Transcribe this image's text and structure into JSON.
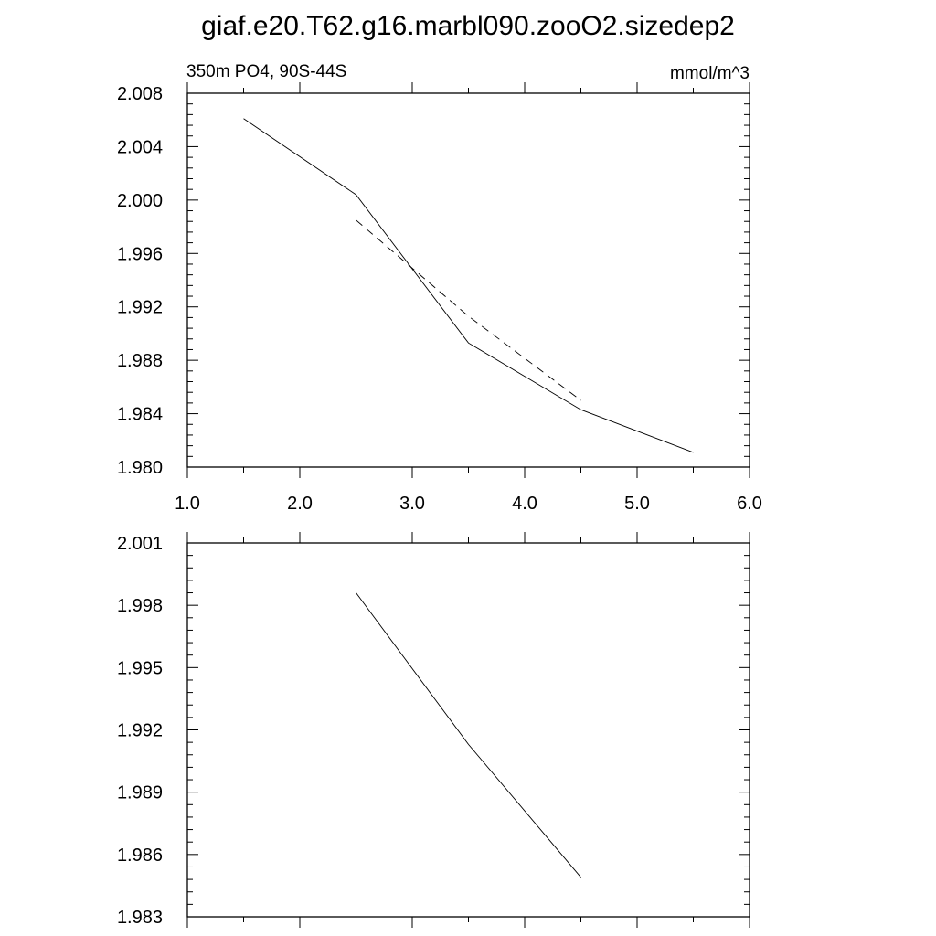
{
  "figure": {
    "title": "giaf.e20.T62.g16.marbl090.zooO2.sizedep2",
    "left_subtitle": "350m PO4, 90S-44S",
    "right_subtitle": "mmol/m^3"
  },
  "chart_data": [
    {
      "type": "line",
      "xlim": [
        1.0,
        6.0
      ],
      "ylim": [
        1.98,
        2.008
      ],
      "x_ticks": [
        "1.0",
        "2.0",
        "3.0",
        "4.0",
        "5.0",
        "6.0"
      ],
      "y_ticks": [
        "2.008",
        "2.004",
        "2.000",
        "1.996",
        "1.992",
        "1.988",
        "1.984",
        "1.980"
      ],
      "grid": false,
      "series": [
        {
          "style": "solid",
          "x": [
            1.5,
            2.5,
            3.5,
            4.5,
            5.5
          ],
          "y": [
            2.0061,
            2.0004,
            1.9893,
            1.9843,
            1.9811
          ]
        },
        {
          "style": "dashed",
          "x": [
            2.5,
            3.5,
            4.5
          ],
          "y": [
            1.9985,
            1.9913,
            1.985
          ]
        }
      ]
    },
    {
      "type": "line",
      "xlim": [
        1.0,
        6.0
      ],
      "ylim": [
        1.983,
        2.001
      ],
      "y_ticks": [
        "2.001",
        "1.998",
        "1.995",
        "1.992",
        "1.989",
        "1.986",
        "1.983"
      ],
      "grid": false,
      "series": [
        {
          "style": "solid",
          "x": [
            2.5,
            3.5,
            4.5
          ],
          "y": [
            1.9986,
            1.9913,
            1.9849
          ]
        }
      ]
    }
  ]
}
